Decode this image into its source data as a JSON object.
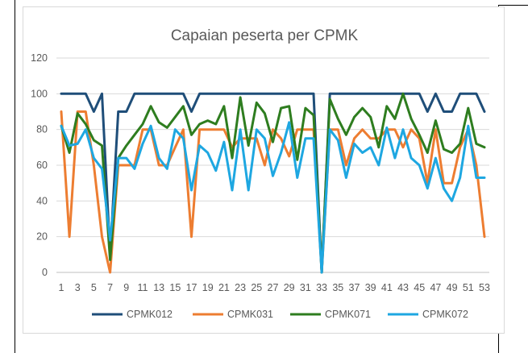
{
  "chart_data": {
    "type": "line",
    "title": "Capaian peserta per CPMK",
    "xlabel": "",
    "ylabel": "",
    "ylim": [
      0,
      120
    ],
    "yticks": [
      0,
      20,
      40,
      60,
      80,
      100,
      120
    ],
    "x": [
      1,
      2,
      3,
      4,
      5,
      6,
      7,
      8,
      9,
      10,
      11,
      12,
      13,
      14,
      15,
      16,
      17,
      18,
      19,
      20,
      21,
      22,
      23,
      24,
      25,
      26,
      27,
      28,
      29,
      30,
      31,
      32,
      33,
      34,
      35,
      36,
      37,
      38,
      39,
      40,
      41,
      42,
      43,
      44,
      45,
      46,
      47,
      48,
      49,
      50,
      51,
      52,
      53
    ],
    "xticks": [
      1,
      3,
      5,
      7,
      9,
      11,
      13,
      15,
      17,
      19,
      21,
      23,
      25,
      27,
      29,
      31,
      33,
      35,
      37,
      39,
      41,
      43,
      45,
      47,
      49,
      51,
      53
    ],
    "grid": true,
    "legend_position": "bottom",
    "series": [
      {
        "name": "CPMK012",
        "color": "#1f4e79",
        "values": [
          100,
          100,
          100,
          100,
          90,
          100,
          10,
          90,
          90,
          100,
          100,
          100,
          100,
          100,
          100,
          100,
          90,
          100,
          100,
          100,
          100,
          100,
          100,
          100,
          100,
          100,
          100,
          100,
          100,
          100,
          100,
          100,
          0,
          100,
          100,
          100,
          100,
          100,
          100,
          100,
          100,
          100,
          100,
          100,
          100,
          90,
          100,
          90,
          90,
          100,
          100,
          100,
          90
        ]
      },
      {
        "name": "CPMK031",
        "color": "#ed7d31",
        "values": [
          90,
          20,
          90,
          90,
          60,
          20,
          0,
          60,
          60,
          60,
          80,
          80,
          60,
          60,
          70,
          80,
          20,
          80,
          80,
          80,
          80,
          70,
          75,
          75,
          75,
          60,
          80,
          75,
          65,
          80,
          80,
          80,
          0,
          80,
          80,
          60,
          75,
          80,
          75,
          75,
          80,
          80,
          70,
          80,
          75,
          50,
          80,
          50,
          50,
          70,
          80,
          60,
          20
        ]
      },
      {
        "name": "CPMK071",
        "color": "#2e7d1f",
        "values": [
          82,
          67,
          89,
          83,
          74,
          71,
          7,
          64,
          71,
          77,
          83,
          93,
          84,
          81,
          87,
          93,
          77,
          83,
          85,
          83,
          93,
          64,
          98,
          71,
          95,
          89,
          73,
          92,
          93,
          63,
          92,
          88,
          0,
          97,
          86,
          77,
          87,
          92,
          87,
          70,
          93,
          86,
          100,
          86,
          77,
          67,
          85,
          69,
          67,
          72,
          92,
          72,
          70
        ]
      },
      {
        "name": "CPMK072",
        "color": "#1ea7e1",
        "values": [
          82,
          71,
          72,
          80,
          64,
          58,
          18,
          64,
          64,
          58,
          72,
          82,
          64,
          58,
          80,
          75,
          46,
          71,
          67,
          57,
          73,
          46,
          80,
          46,
          80,
          75,
          54,
          67,
          84,
          53,
          75,
          75,
          0,
          80,
          74,
          53,
          72,
          67,
          70,
          60,
          81,
          64,
          80,
          64,
          60,
          47,
          64,
          47,
          40,
          53,
          82,
          53,
          53
        ]
      }
    ]
  }
}
